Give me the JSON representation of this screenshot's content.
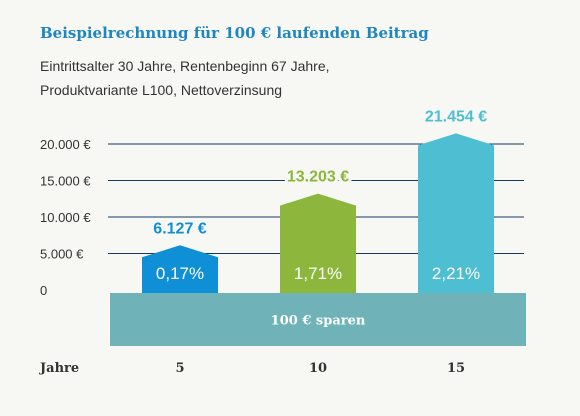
{
  "title": "Beispielrechnung für 100 € laufenden Beitrag",
  "subtitle_lines": [
    "Eintrittsalter 30 Jahre, Rentenbeginn 67 Jahre,",
    "Produktvariante L100, Nettoverzinsung"
  ],
  "colors": {
    "background": "#f7f7f3",
    "title": "#1f86bf",
    "base_band": "#6fb3b8",
    "gridline": "#163a63",
    "text": "#333333",
    "bar_5": "#0f8fd6",
    "bar_10": "#8cb63c",
    "bar_15": "#4ebfd3"
  },
  "chart_data": {
    "type": "bar",
    "categories": [
      "5",
      "10",
      "15"
    ],
    "values": [
      6127,
      13203,
      21454
    ],
    "value_labels": [
      "6.127 €",
      "13.203 €",
      "21.454 €"
    ],
    "rate_labels": [
      "0,17%",
      "1,71%",
      "2,21%"
    ],
    "bar_colors": [
      "#0f8fd6",
      "#8cb63c",
      "#4ebfd3"
    ],
    "ylim": [
      0,
      20000
    ],
    "yticks": [
      0,
      5000,
      10000,
      15000,
      20000
    ],
    "ytick_labels": [
      "0",
      "5.000 €",
      "10.000 €",
      "15.000 €",
      "20.000 €"
    ],
    "xlabel": "Jahre",
    "base_label": "100 € sparen",
    "grid": true
  }
}
